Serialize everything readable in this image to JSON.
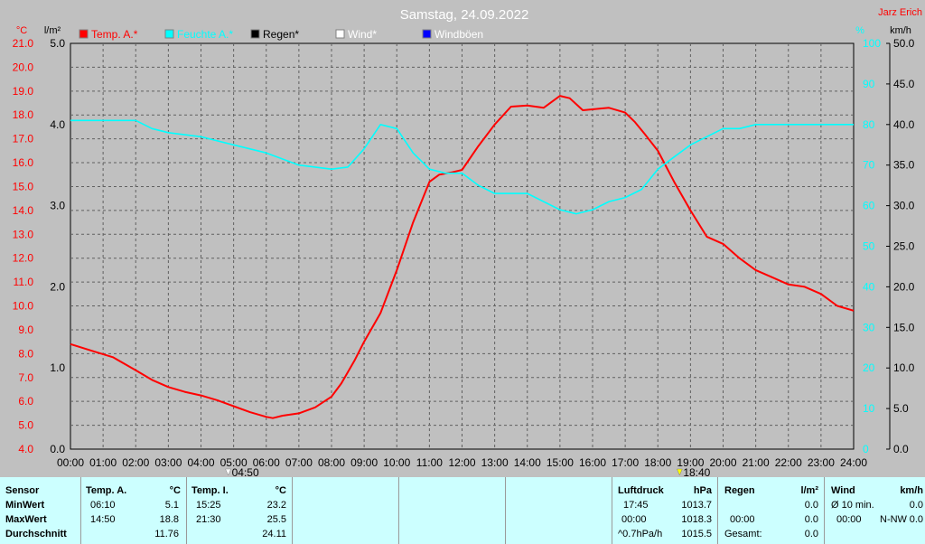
{
  "colors": {
    "temp": "#ff0000",
    "humidity": "#00ffff",
    "rain": "#000000",
    "wind": "#ffffff",
    "gust": "#0000ff",
    "plot_bg": "#c0c0c0",
    "panel_bg": "#ccffff"
  },
  "chart_data": {
    "type": "line",
    "title": "Samstag, 24.09.2022",
    "author": "Jarz Erich",
    "legend": [
      "Temp. A.*",
      "Feuchte A.*",
      "Regen*",
      "Wind*",
      "Windböen"
    ],
    "x_ticks": [
      "00:00",
      "01:00",
      "02:00",
      "03:00",
      "04:00",
      "05:00",
      "06:00",
      "07:00",
      "08:00",
      "09:00",
      "10:00",
      "11:00",
      "12:00",
      "13:00",
      "14:00",
      "15:00",
      "16:00",
      "17:00",
      "18:00",
      "19:00",
      "20:00",
      "21:00",
      "22:00",
      "23:00",
      "24:00"
    ],
    "xlim": [
      0,
      24
    ],
    "axes": {
      "temp": {
        "unit": "°C",
        "ylim": [
          4,
          21
        ],
        "ticks": [
          "4.0",
          "5.0",
          "6.0",
          "7.0",
          "8.0",
          "9.0",
          "10.0",
          "11.0",
          "12.0",
          "13.0",
          "14.0",
          "15.0",
          "16.0",
          "17.0",
          "18.0",
          "19.0",
          "20.0",
          "21.0"
        ]
      },
      "rain": {
        "unit": "l/m²",
        "ylim": [
          0,
          5
        ],
        "ticks": [
          "0.0",
          "1.0",
          "2.0",
          "3.0",
          "4.0",
          "5.0"
        ]
      },
      "humidity": {
        "unit": "%",
        "ylim": [
          0,
          100
        ],
        "ticks": [
          "0",
          "10",
          "20",
          "30",
          "40",
          "50",
          "60",
          "70",
          "80",
          "90",
          "100"
        ]
      },
      "wind": {
        "unit": "km/h",
        "ylim": [
          0,
          50
        ],
        "ticks": [
          "0.0",
          "5.0",
          "10.0",
          "15.0",
          "20.0",
          "25.0",
          "30.0",
          "35.0",
          "40.0",
          "45.0",
          "50.0"
        ]
      }
    },
    "grid": true,
    "sunrise": "04:50",
    "sunset": "18:40",
    "series": [
      {
        "name": "Temp. A.*",
        "axis": "temp",
        "x": [
          0,
          0.7,
          1.3,
          2,
          2.5,
          3,
          3.5,
          4,
          4.5,
          5,
          5.5,
          6,
          6.2,
          6.5,
          7,
          7.5,
          8,
          8.3,
          8.7,
          9,
          9.5,
          10,
          10.5,
          11,
          11.3,
          11.7,
          12,
          12.5,
          13,
          13.5,
          14,
          14.5,
          15,
          15.3,
          15.7,
          16.5,
          17,
          17.3,
          17.6,
          18,
          18.5,
          19,
          19.5,
          20,
          20.5,
          21,
          21.5,
          22,
          22.5,
          23,
          23.5,
          24
        ],
        "y": [
          8.4,
          8.1,
          7.85,
          7.3,
          6.9,
          6.6,
          6.4,
          6.25,
          6.05,
          5.8,
          5.55,
          5.35,
          5.3,
          5.4,
          5.5,
          5.75,
          6.2,
          6.75,
          7.7,
          8.5,
          9.7,
          11.5,
          13.5,
          15.2,
          15.5,
          15.6,
          15.7,
          16.7,
          17.6,
          18.35,
          18.4,
          18.3,
          18.8,
          18.7,
          18.2,
          18.3,
          18.1,
          17.7,
          17.2,
          16.5,
          15.2,
          14.0,
          12.9,
          12.6,
          12.0,
          11.5,
          11.2,
          10.9,
          10.8,
          10.5,
          10.0,
          9.8
        ]
      },
      {
        "name": "Feuchte A.*",
        "axis": "humidity",
        "x": [
          0,
          1,
          2,
          2.5,
          3,
          4,
          5,
          6,
          7,
          7.5,
          8,
          8.5,
          9,
          9.5,
          10,
          10.5,
          11,
          11.5,
          12,
          12.5,
          13,
          14,
          15,
          15.5,
          16,
          16.5,
          17,
          17.5,
          18,
          18.5,
          19,
          20,
          20.5,
          21,
          22,
          23,
          24
        ],
        "y": [
          81,
          81,
          81,
          79,
          78,
          77,
          75,
          73,
          70,
          69.5,
          69,
          69.5,
          74,
          80,
          79,
          73,
          69,
          68,
          68,
          65,
          63,
          63,
          59,
          58,
          59,
          61,
          62,
          64,
          69,
          72,
          75,
          79,
          79,
          80,
          80,
          80,
          80
        ]
      }
    ]
  },
  "table": {
    "row_labels": [
      "Sensor",
      "MinWert",
      "MaxWert",
      "Durchschnitt"
    ],
    "temp_a": {
      "header": "Temp. A.",
      "unit": "°C",
      "min_time": "06:10",
      "min": "5.1",
      "max_time": "14:50",
      "max": "18.8",
      "avg": "11.76"
    },
    "temp_i": {
      "header": "Temp. I.",
      "unit": "°C",
      "min_time": "15:25",
      "min": "23.2",
      "max_time": "21:30",
      "max": "25.5",
      "avg": "24.11"
    },
    "pressure": {
      "header": "Luftdruck",
      "unit": "hPa",
      "r1_time": "17:45",
      "r1": "1013.7",
      "r2_time": "00:00",
      "r2": "1018.3",
      "r3_label": "^0.7hPa/h",
      "r3": "1015.5"
    },
    "rain": {
      "header": "Regen",
      "unit": "l/m²",
      "r1": "0.0",
      "r2_time": "00:00",
      "r2": "0.0",
      "r3_label": "Gesamt:",
      "r3": "0.0"
    },
    "wind": {
      "header": "Wind",
      "unit": "km/h",
      "r1_label": "Ø 10 min.",
      "r1": "0.0",
      "r2_time": "00:00",
      "r2_dir": "N-NW",
      "r2": "0.0"
    }
  }
}
